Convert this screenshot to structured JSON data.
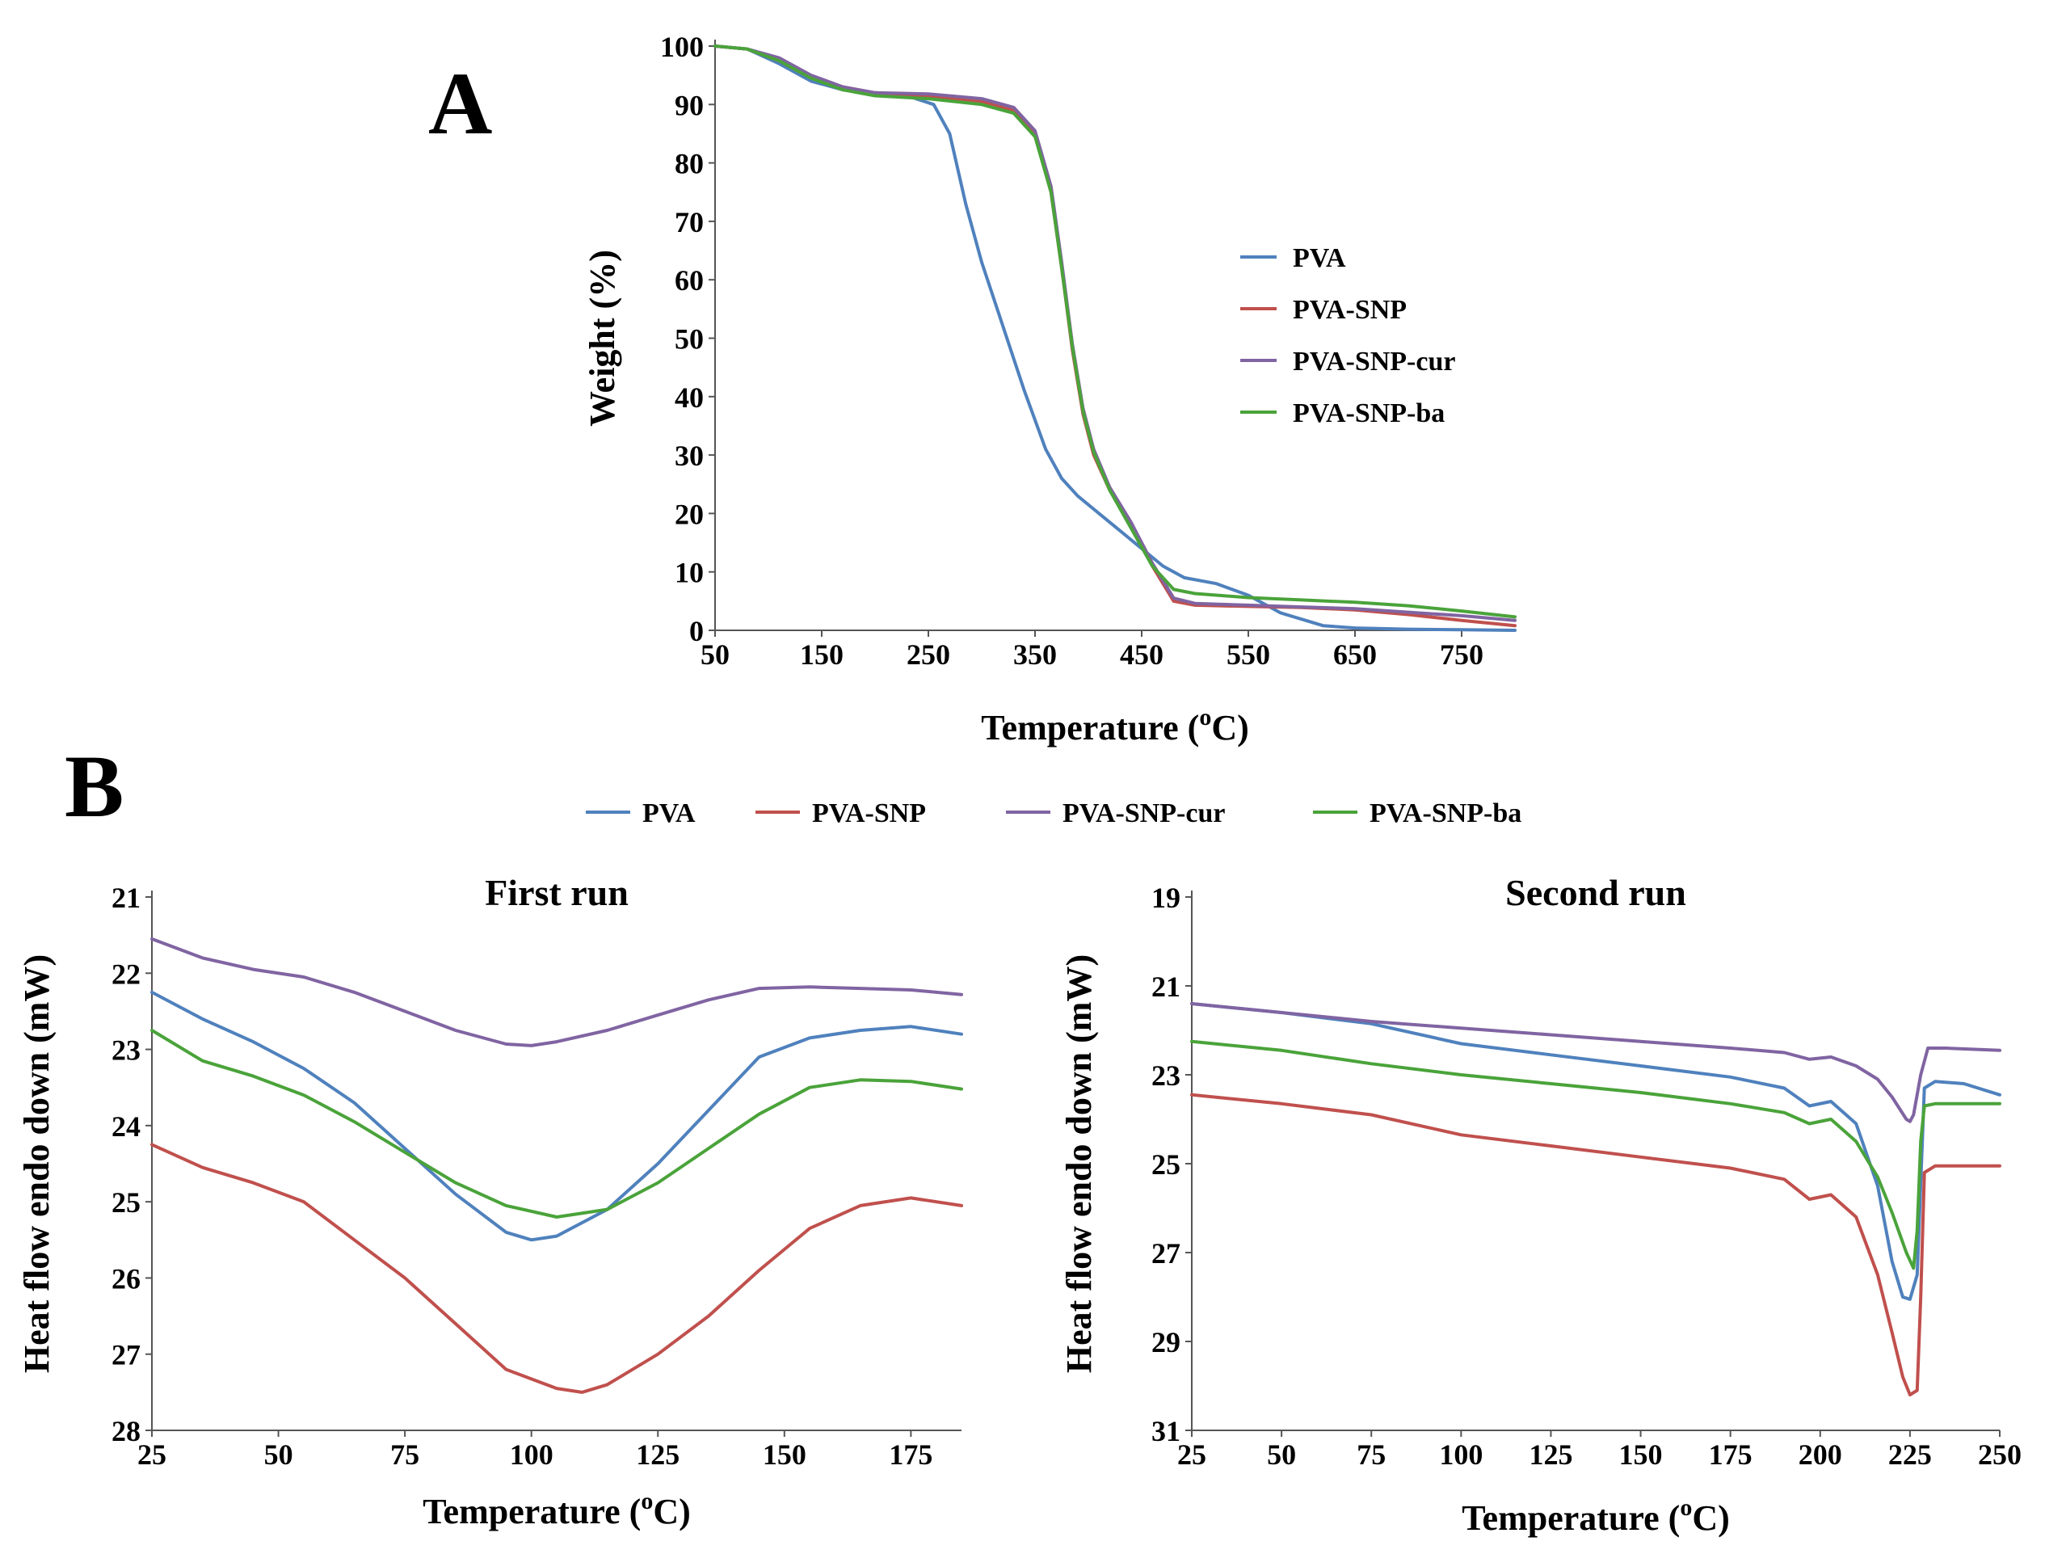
{
  "panels": {
    "a": {
      "letter": "A"
    },
    "b": {
      "letter": "B"
    }
  },
  "colors": {
    "PVA": "#4f81bd",
    "PVA-SNP": "#c0504d",
    "PVA-SNP-cur": "#8064a2",
    "PVA-SNP-ba": "#4aa33a"
  },
  "chart_data": [
    {
      "id": "tga",
      "type": "line",
      "title": "",
      "xlabel": "Temperature (",
      "xlabel_sup": "o",
      "xlabel_tail": "C)",
      "ylabel": "Weight (%)",
      "xlim": [
        50,
        800
      ],
      "ylim": [
        0,
        100
      ],
      "xticks": [
        50,
        150,
        250,
        350,
        450,
        550,
        650,
        750
      ],
      "yticks": [
        0,
        10,
        20,
        30,
        40,
        50,
        60,
        70,
        80,
        90,
        100
      ],
      "y_inverted": false,
      "legend_position": "right",
      "series": [
        {
          "name": "PVA",
          "x": [
            50,
            80,
            110,
            140,
            170,
            200,
            230,
            255,
            270,
            285,
            300,
            320,
            340,
            360,
            375,
            390,
            410,
            430,
            450,
            470,
            490,
            520,
            550,
            580,
            620,
            650,
            700,
            750,
            800
          ],
          "y": [
            100,
            99.5,
            97,
            94,
            92.5,
            92,
            91.5,
            90,
            85,
            73,
            63,
            52,
            41,
            31,
            26,
            23,
            20,
            17,
            14,
            11,
            9,
            8,
            6,
            3,
            0.8,
            0.4,
            0.2,
            0.1,
            0
          ]
        },
        {
          "name": "PVA-SNP",
          "x": [
            50,
            80,
            110,
            140,
            170,
            200,
            250,
            300,
            330,
            350,
            365,
            375,
            385,
            395,
            405,
            420,
            440,
            460,
            480,
            500,
            550,
            600,
            650,
            700,
            750,
            800
          ],
          "y": [
            100,
            99.5,
            97.5,
            94.5,
            93,
            92,
            91.5,
            90.5,
            89,
            85,
            75,
            62,
            48,
            37,
            30,
            24,
            18,
            11,
            5,
            4.3,
            4.1,
            3.9,
            3.5,
            2.7,
            1.7,
            0.8
          ]
        },
        {
          "name": "PVA-SNP-cur",
          "x": [
            50,
            80,
            110,
            140,
            170,
            200,
            250,
            300,
            330,
            350,
            365,
            375,
            385,
            395,
            405,
            420,
            440,
            460,
            480,
            500,
            550,
            600,
            650,
            700,
            750,
            800
          ],
          "y": [
            100,
            99.5,
            98,
            95,
            93,
            92,
            91.8,
            91,
            89.5,
            85.5,
            76,
            63,
            49,
            38,
            31,
            24.5,
            18.5,
            11.5,
            5.5,
            4.6,
            4.3,
            4,
            3.7,
            3.1,
            2.5,
            1.7
          ]
        },
        {
          "name": "PVA-SNP-ba",
          "x": [
            50,
            80,
            110,
            140,
            170,
            200,
            250,
            300,
            330,
            350,
            365,
            375,
            385,
            395,
            405,
            420,
            440,
            460,
            480,
            500,
            550,
            600,
            650,
            700,
            750,
            800
          ],
          "y": [
            100,
            99.5,
            97.5,
            94.5,
            92.5,
            91.5,
            91,
            90,
            88.5,
            84.5,
            75,
            62,
            48.5,
            37.5,
            30.5,
            24,
            17.5,
            11,
            7,
            6.3,
            5.6,
            5.2,
            4.8,
            4.2,
            3.3,
            2.3
          ]
        }
      ]
    },
    {
      "id": "dsc-first",
      "type": "line",
      "title": "First run",
      "xlabel": "Temperature (",
      "xlabel_sup": "o",
      "xlabel_tail": "C)",
      "ylabel": "Heat flow endo down (mW)",
      "xlim": [
        25,
        185
      ],
      "ylim": [
        21,
        28
      ],
      "xticks": [
        25,
        50,
        75,
        100,
        125,
        150,
        175
      ],
      "yticks": [
        21,
        22,
        23,
        24,
        25,
        26,
        27,
        28
      ],
      "y_inverted": true,
      "legend_position": "top",
      "series": [
        {
          "name": "PVA",
          "x": [
            25,
            35,
            45,
            55,
            65,
            75,
            85,
            95,
            100,
            105,
            115,
            125,
            135,
            145,
            155,
            165,
            175,
            185
          ],
          "y": [
            22.25,
            22.6,
            22.9,
            23.25,
            23.7,
            24.3,
            24.9,
            25.4,
            25.5,
            25.45,
            25.1,
            24.5,
            23.8,
            23.1,
            22.85,
            22.75,
            22.7,
            22.8
          ]
        },
        {
          "name": "PVA-SNP",
          "x": [
            25,
            35,
            45,
            55,
            65,
            75,
            85,
            95,
            105,
            110,
            115,
            125,
            135,
            145,
            155,
            165,
            175,
            185
          ],
          "y": [
            24.25,
            24.55,
            24.75,
            25.0,
            25.5,
            26.0,
            26.6,
            27.2,
            27.45,
            27.5,
            27.4,
            27.0,
            26.5,
            25.9,
            25.35,
            25.05,
            24.95,
            25.05
          ]
        },
        {
          "name": "PVA-SNP-cur",
          "x": [
            25,
            35,
            45,
            55,
            65,
            75,
            85,
            95,
            100,
            105,
            115,
            125,
            135,
            145,
            155,
            165,
            175,
            185
          ],
          "y": [
            21.55,
            21.8,
            21.95,
            22.05,
            22.25,
            22.5,
            22.75,
            22.93,
            22.95,
            22.9,
            22.75,
            22.55,
            22.35,
            22.2,
            22.18,
            22.2,
            22.22,
            22.28
          ]
        },
        {
          "name": "PVA-SNP-ba",
          "x": [
            25,
            35,
            45,
            55,
            65,
            75,
            85,
            95,
            105,
            115,
            125,
            135,
            145,
            155,
            165,
            175,
            185
          ],
          "y": [
            22.75,
            23.15,
            23.35,
            23.6,
            23.95,
            24.35,
            24.75,
            25.05,
            25.2,
            25.1,
            24.75,
            24.3,
            23.85,
            23.5,
            23.4,
            23.42,
            23.52
          ]
        }
      ]
    },
    {
      "id": "dsc-second",
      "type": "line",
      "title": "Second run",
      "xlabel": "Temperature (",
      "xlabel_sup": "o",
      "xlabel_tail": "C)",
      "ylabel": "Heat flow endo down (mW)",
      "xlim": [
        25,
        250
      ],
      "ylim": [
        19,
        31
      ],
      "xticks": [
        25,
        50,
        75,
        100,
        125,
        150,
        175,
        200,
        225,
        250
      ],
      "yticks": [
        19,
        21,
        23,
        25,
        27,
        29,
        31
      ],
      "y_inverted": true,
      "legend_position": "top",
      "series": [
        {
          "name": "PVA",
          "x": [
            25,
            50,
            75,
            100,
            125,
            150,
            175,
            190,
            197,
            203,
            210,
            216,
            220,
            223,
            225,
            227,
            229,
            232,
            240,
            250
          ],
          "y": [
            21.4,
            21.6,
            21.85,
            22.3,
            22.55,
            22.8,
            23.05,
            23.3,
            23.7,
            23.6,
            24.1,
            25.5,
            27.2,
            28.0,
            28.05,
            27.5,
            23.3,
            23.15,
            23.2,
            23.45
          ]
        },
        {
          "name": "PVA-SNP",
          "x": [
            25,
            50,
            75,
            100,
            125,
            150,
            175,
            190,
            197,
            203,
            210,
            216,
            220,
            223,
            225,
            227,
            228,
            229,
            232,
            240,
            250
          ],
          "y": [
            23.45,
            23.65,
            23.9,
            24.35,
            24.6,
            24.85,
            25.1,
            25.35,
            25.8,
            25.7,
            26.2,
            27.5,
            28.8,
            29.8,
            30.2,
            30.1,
            28.0,
            25.2,
            25.05,
            25.05,
            25.05
          ]
        },
        {
          "name": "PVA-SNP-cur",
          "x": [
            25,
            50,
            75,
            100,
            125,
            150,
            175,
            190,
            197,
            203,
            210,
            216,
            220,
            224,
            225,
            226,
            228,
            230,
            235,
            250
          ],
          "y": [
            21.4,
            21.6,
            21.8,
            21.95,
            22.1,
            22.25,
            22.4,
            22.5,
            22.65,
            22.6,
            22.8,
            23.1,
            23.5,
            24.0,
            24.05,
            23.9,
            23.0,
            22.4,
            22.4,
            22.45
          ]
        },
        {
          "name": "PVA-SNP-ba",
          "x": [
            25,
            50,
            75,
            100,
            125,
            150,
            175,
            190,
            197,
            203,
            210,
            216,
            220,
            224,
            226,
            227,
            228,
            229,
            232,
            240,
            250
          ],
          "y": [
            22.25,
            22.45,
            22.75,
            23.0,
            23.2,
            23.4,
            23.65,
            23.85,
            24.1,
            24.0,
            24.5,
            25.3,
            26.1,
            27.0,
            27.35,
            26.5,
            24.5,
            23.7,
            23.65,
            23.65,
            23.65
          ]
        }
      ]
    }
  ],
  "legend_b": [
    "PVA",
    "PVA-SNP",
    "PVA-SNP-cur",
    "PVA-SNP-ba"
  ]
}
